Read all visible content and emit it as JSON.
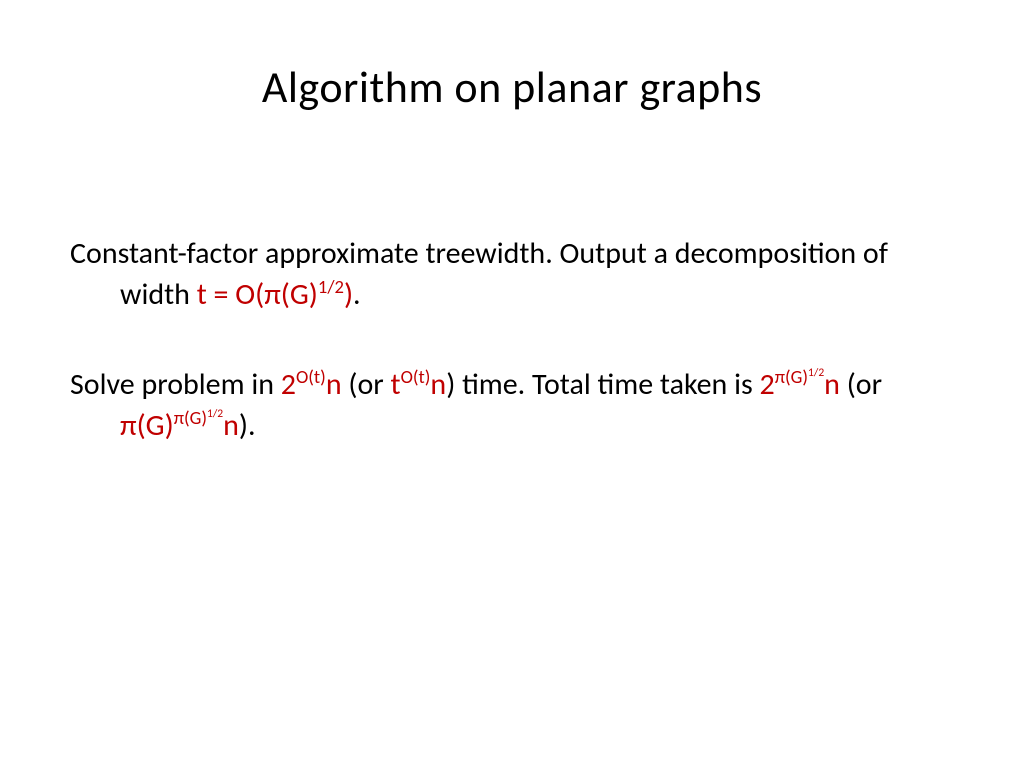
{
  "slide": {
    "title": "Algorithm on planar graphs",
    "para1": {
      "black1": "Constant-factor approximate treewidth.  Output a decomposition of width ",
      "red1": "t = O(π(G)",
      "red1_sup": "1/2",
      "red1_close": ")",
      "black2": "."
    },
    "para2": {
      "black1": "Solve problem in ",
      "red1": "2",
      "red1_sup": "O(t)",
      "red1b": "n",
      "black2": " (or ",
      "red2": "t",
      "red2_sup": "O(t)",
      "red2b": "n",
      "black3": ") time. Total time taken is ",
      "red3": "2",
      "red3_sup_a": "π(G)",
      "red3_sup_b": "1/2",
      "red3b": "n",
      "black4": " (or ",
      "red4": "π(G)",
      "red4_sup_a": "π(G)",
      "red4_sup_b": "1/2",
      "red4b": "n",
      "black5": ")."
    }
  },
  "colors": {
    "text": "#000000",
    "accent": "#c00000",
    "background": "#ffffff"
  },
  "fonts": {
    "title_size": 44,
    "body_size": 30
  }
}
